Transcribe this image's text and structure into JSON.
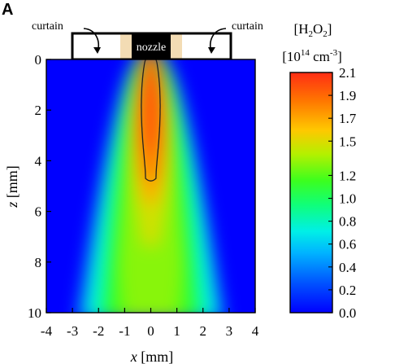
{
  "panel_label": "A",
  "nozzle_label": "nozzle",
  "curtain_left_label": "curtain",
  "curtain_right_label": "curtain",
  "colorbar_title_line1": "[H2O2]",
  "colorbar_title_species": {
    "H": "H",
    "sub1": "2",
    "O": "O",
    "sub2": "2"
  },
  "colorbar_unit": {
    "prefix": "10",
    "exp": "14",
    "unit": " cm",
    "unit_exp": "-3",
    "open": "[",
    "close": "]"
  },
  "colors": {
    "background": "#ffffff",
    "nozzle_black": "#000000",
    "insulator": "#f3dcb4",
    "contour_line": "#222222"
  },
  "chart_data": {
    "type": "heatmap",
    "title": "",
    "xlabel": "x [mm]",
    "xlabel_var": "x",
    "xlabel_unit": " [mm]",
    "ylabel": "z [mm]",
    "ylabel_var": "z",
    "ylabel_unit": " [mm]",
    "xlim": [
      -4,
      4
    ],
    "ylim": [
      10,
      0
    ],
    "x_ticks": [
      "-4",
      "-3",
      "-2",
      "-1",
      "0",
      "1",
      "2",
      "3",
      "4"
    ],
    "y_ticks": [
      "0",
      "2",
      "4",
      "6",
      "8",
      "10"
    ],
    "colorbar": {
      "label": "[H2O2] [10^14 cm^-3]",
      "range": [
        0.0,
        2.1
      ],
      "colormap": "jet",
      "ticks": [
        "2.1",
        "1.9",
        "1.7",
        "1.5",
        "1.2",
        "1.0",
        "0.8",
        "0.6",
        "0.4",
        "0.2",
        "0.0"
      ]
    },
    "contour": {
      "level": 1.9,
      "z_extent_mm": [
        0,
        4.7
      ]
    },
    "grid": false,
    "legend": "none"
  }
}
